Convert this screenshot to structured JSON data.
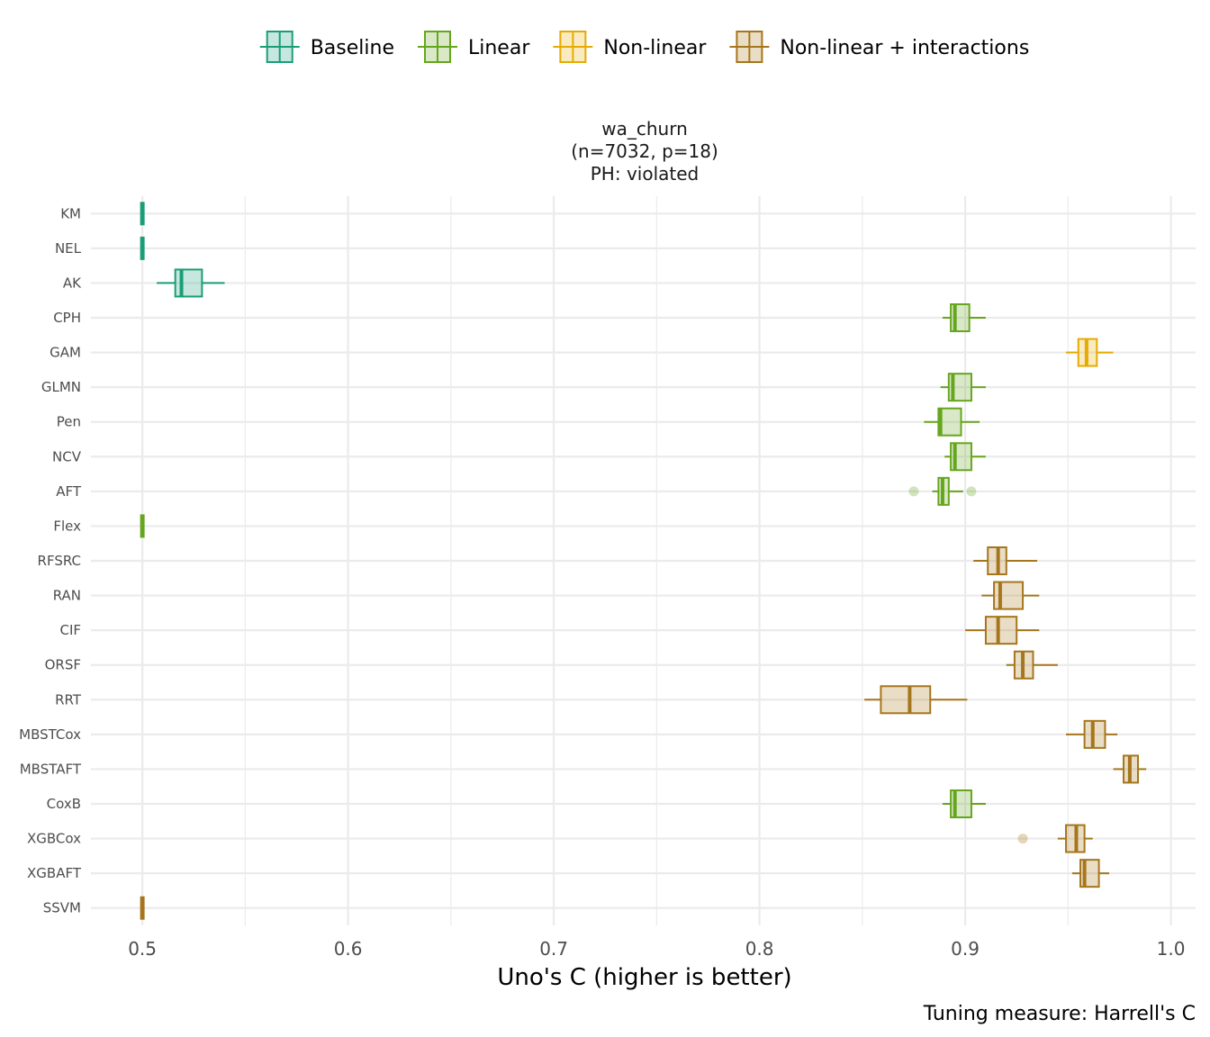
{
  "chart_data": {
    "type": "boxplot",
    "orientation": "horizontal",
    "title_lines": [
      "wa_churn",
      "(n=7032, p=18)",
      "PH: violated"
    ],
    "xlabel": "Uno's C (higher is better)",
    "caption": "Tuning measure: Harrell's C",
    "xlim": [
      0.475,
      1.012
    ],
    "x_ticks": [
      0.5,
      0.6,
      0.7,
      0.8,
      0.9,
      1.0
    ],
    "x_tick_labels": [
      "0.5",
      "0.6",
      "0.7",
      "0.8",
      "0.9",
      "1.0"
    ],
    "minor_ticks": [
      0.55,
      0.65,
      0.75,
      0.85,
      0.95
    ],
    "legend": [
      {
        "name": "Baseline",
        "color": "#1b9e77"
      },
      {
        "name": "Linear",
        "color": "#66a61e"
      },
      {
        "name": "Non-linear",
        "color": "#e6ab02"
      },
      {
        "name": "Non-linear + interactions",
        "color": "#a6761d"
      }
    ],
    "series": [
      {
        "model": "KM",
        "group": "Baseline",
        "whisker_low": 0.5,
        "q1": 0.5,
        "median": 0.5,
        "q3": 0.5,
        "whisker_high": 0.5,
        "outliers": []
      },
      {
        "model": "NEL",
        "group": "Baseline",
        "whisker_low": 0.5,
        "q1": 0.5,
        "median": 0.5,
        "q3": 0.5,
        "whisker_high": 0.5,
        "outliers": []
      },
      {
        "model": "AK",
        "group": "Baseline",
        "whisker_low": 0.507,
        "q1": 0.516,
        "median": 0.519,
        "q3": 0.529,
        "whisker_high": 0.54,
        "outliers": []
      },
      {
        "model": "CPH",
        "group": "Linear",
        "whisker_low": 0.889,
        "q1": 0.893,
        "median": 0.895,
        "q3": 0.902,
        "whisker_high": 0.91,
        "outliers": []
      },
      {
        "model": "GAM",
        "group": "Non-linear",
        "whisker_low": 0.949,
        "q1": 0.955,
        "median": 0.959,
        "q3": 0.964,
        "whisker_high": 0.972,
        "outliers": []
      },
      {
        "model": "GLMN",
        "group": "Linear",
        "whisker_low": 0.888,
        "q1": 0.892,
        "median": 0.894,
        "q3": 0.903,
        "whisker_high": 0.91,
        "outliers": []
      },
      {
        "model": "Pen",
        "group": "Linear",
        "whisker_low": 0.88,
        "q1": 0.887,
        "median": 0.888,
        "q3": 0.898,
        "whisker_high": 0.907,
        "outliers": []
      },
      {
        "model": "NCV",
        "group": "Linear",
        "whisker_low": 0.89,
        "q1": 0.893,
        "median": 0.895,
        "q3": 0.903,
        "whisker_high": 0.91,
        "outliers": []
      },
      {
        "model": "AFT",
        "group": "Linear",
        "whisker_low": 0.884,
        "q1": 0.887,
        "median": 0.889,
        "q3": 0.892,
        "whisker_high": 0.899,
        "outliers": [
          0.875,
          0.903
        ]
      },
      {
        "model": "Flex",
        "group": "Linear",
        "whisker_low": 0.5,
        "q1": 0.5,
        "median": 0.5,
        "q3": 0.5,
        "whisker_high": 0.5,
        "outliers": []
      },
      {
        "model": "RFSRC",
        "group": "Non-linear + interactions",
        "whisker_low": 0.904,
        "q1": 0.911,
        "median": 0.916,
        "q3": 0.92,
        "whisker_high": 0.935,
        "outliers": []
      },
      {
        "model": "RAN",
        "group": "Non-linear + interactions",
        "whisker_low": 0.908,
        "q1": 0.914,
        "median": 0.917,
        "q3": 0.928,
        "whisker_high": 0.936,
        "outliers": []
      },
      {
        "model": "CIF",
        "group": "Non-linear + interactions",
        "whisker_low": 0.9,
        "q1": 0.91,
        "median": 0.916,
        "q3": 0.925,
        "whisker_high": 0.936,
        "outliers": []
      },
      {
        "model": "ORSF",
        "group": "Non-linear + interactions",
        "whisker_low": 0.92,
        "q1": 0.924,
        "median": 0.928,
        "q3": 0.933,
        "whisker_high": 0.945,
        "outliers": []
      },
      {
        "model": "RRT",
        "group": "Non-linear + interactions",
        "whisker_low": 0.851,
        "q1": 0.859,
        "median": 0.873,
        "q3": 0.883,
        "whisker_high": 0.901,
        "outliers": []
      },
      {
        "model": "MBSTCox",
        "group": "Non-linear + interactions",
        "whisker_low": 0.949,
        "q1": 0.958,
        "median": 0.962,
        "q3": 0.968,
        "whisker_high": 0.974,
        "outliers": []
      },
      {
        "model": "MBSTAFT",
        "group": "Non-linear + interactions",
        "whisker_low": 0.972,
        "q1": 0.977,
        "median": 0.98,
        "q3": 0.984,
        "whisker_high": 0.988,
        "outliers": []
      },
      {
        "model": "CoxB",
        "group": "Linear",
        "whisker_low": 0.889,
        "q1": 0.893,
        "median": 0.895,
        "q3": 0.903,
        "whisker_high": 0.91,
        "outliers": []
      },
      {
        "model": "XGBCox",
        "group": "Non-linear + interactions",
        "whisker_low": 0.945,
        "q1": 0.949,
        "median": 0.954,
        "q3": 0.958,
        "whisker_high": 0.962,
        "outliers": [
          0.928
        ]
      },
      {
        "model": "XGBAFT",
        "group": "Non-linear + interactions",
        "whisker_low": 0.952,
        "q1": 0.956,
        "median": 0.958,
        "q3": 0.965,
        "whisker_high": 0.97,
        "outliers": []
      },
      {
        "model": "SSVM",
        "group": "Non-linear + interactions",
        "whisker_low": 0.5,
        "q1": 0.5,
        "median": 0.5,
        "q3": 0.5,
        "whisker_high": 0.5,
        "outliers": []
      }
    ]
  }
}
